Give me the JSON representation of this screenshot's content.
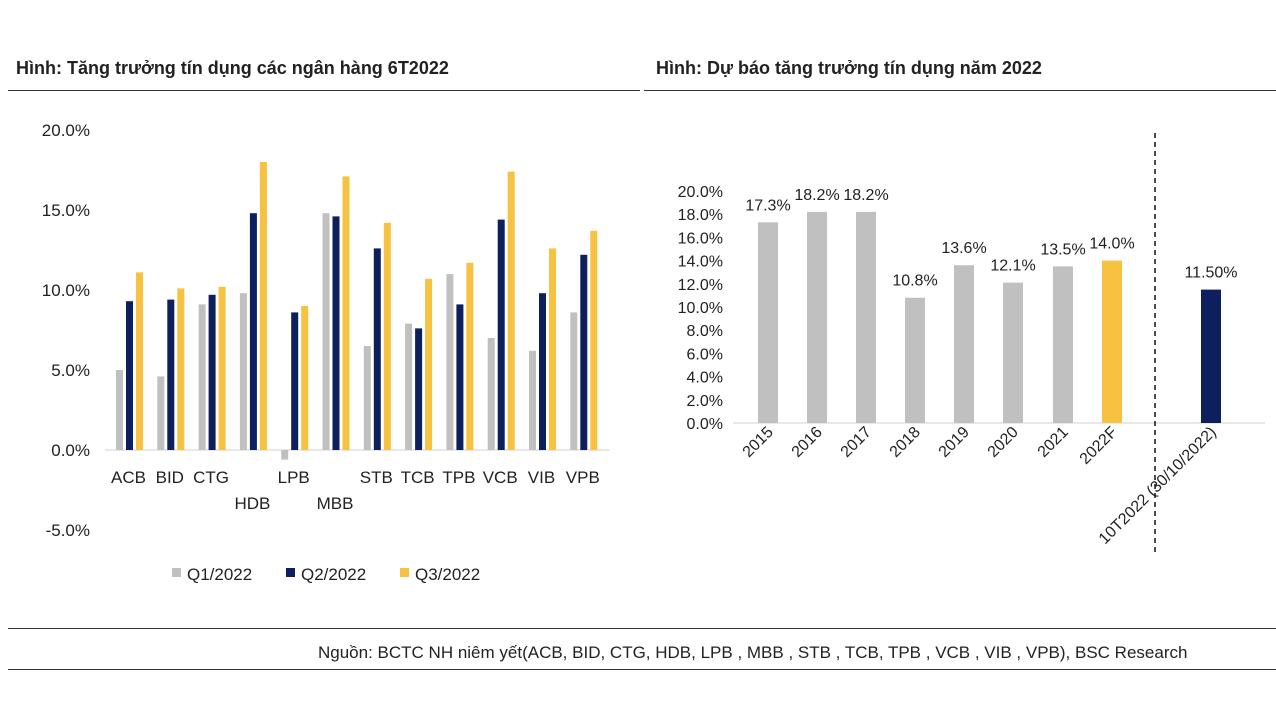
{
  "left_title": "Hình: Tăng trưởng tín dụng các ngân hàng 6T2022",
  "right_title": "Hình: Dự báo tăng trưởng tín dụng năm 2022",
  "source": "Nguồn: BCTC NH niêm yết(ACB, BID, CTG, HDB, LPB , MBB , STB , TCB, TPB , VCB , VIB , VPB), BSC Research",
  "colors": {
    "q1": "#c0c0c0",
    "q2": "#0d1f5c",
    "q3": "#f7c242",
    "hist": "#c0c0c0",
    "forecast": "#f7c242",
    "actual": "#0d1f5c"
  },
  "chart_data": [
    {
      "type": "bar",
      "categories": [
        "ACB",
        "BID",
        "CTG",
        "HDB",
        "LPB",
        "MBB",
        "STB",
        "TCB",
        "TPB",
        "VCB",
        "VIB",
        "VPB"
      ],
      "series": [
        {
          "name": "Q1/2022",
          "values": [
            5.0,
            4.6,
            9.1,
            9.8,
            -0.6,
            14.8,
            6.5,
            7.9,
            11.0,
            7.0,
            6.2,
            8.6
          ]
        },
        {
          "name": "Q2/2022",
          "values": [
            9.3,
            9.4,
            9.7,
            14.8,
            8.6,
            14.6,
            12.6,
            7.6,
            9.1,
            14.4,
            9.8,
            12.2
          ]
        },
        {
          "name": "Q3/2022",
          "values": [
            11.1,
            10.1,
            10.2,
            18.0,
            9.0,
            17.1,
            14.2,
            10.7,
            11.7,
            17.4,
            12.6,
            13.7
          ]
        }
      ],
      "yticks": [
        "20.0%",
        "15.0%",
        "10.0%",
        "5.0%",
        "0.0%",
        "-5.0%"
      ],
      "ylim": [
        -5,
        20
      ],
      "legend": "bottom"
    },
    {
      "type": "bar",
      "categories": [
        "2015",
        "2016",
        "2017",
        "2018",
        "2019",
        "2020",
        "2021",
        "2022F",
        "10T2022 (30/10/2022)"
      ],
      "values": [
        17.3,
        18.2,
        18.2,
        10.8,
        13.6,
        12.1,
        13.5,
        14.0,
        11.5
      ],
      "labels": [
        "17.3%",
        "18.2%",
        "18.2%",
        "10.8%",
        "13.6%",
        "12.1%",
        "13.5%",
        "14.0%",
        "11.50%"
      ],
      "yticks": [
        "20.0%",
        "18.0%",
        "16.0%",
        "14.0%",
        "12.0%",
        "10.0%",
        "8.0%",
        "6.0%",
        "4.0%",
        "2.0%",
        "0.0%"
      ],
      "ylim": [
        0,
        20
      ]
    }
  ]
}
